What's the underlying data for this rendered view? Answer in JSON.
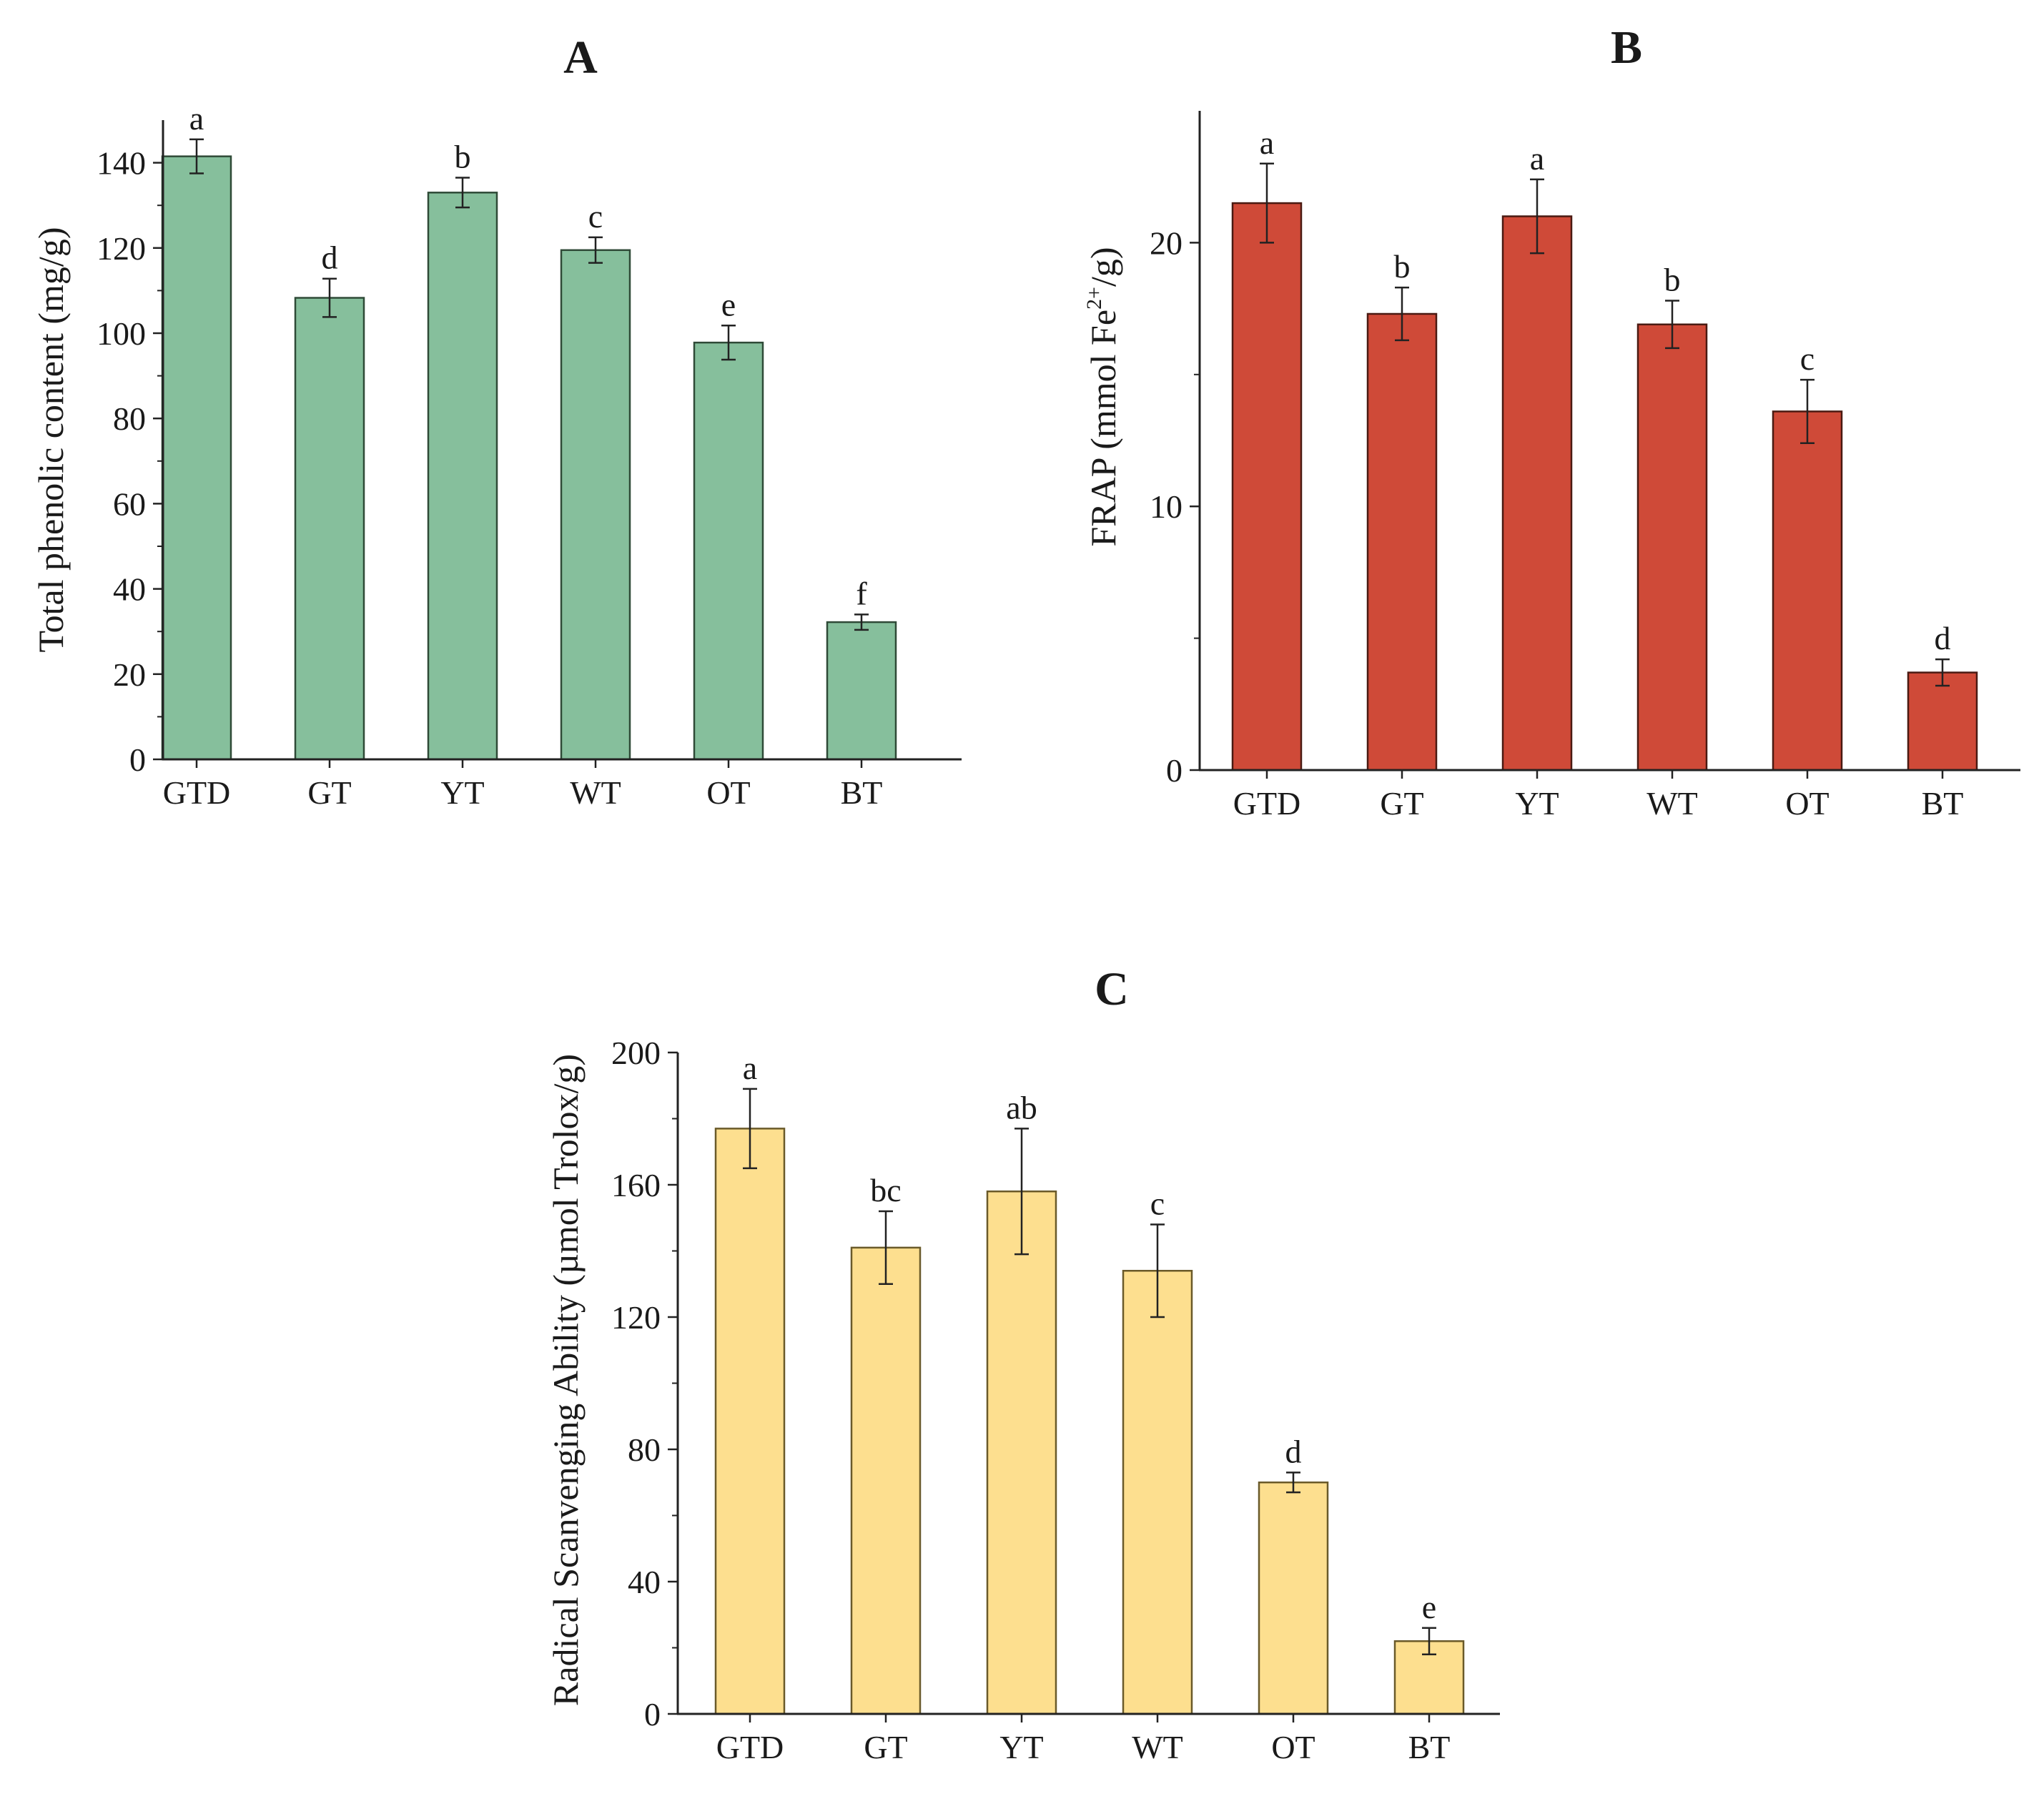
{
  "chart_data": [
    {
      "type": "bar",
      "title": "A",
      "ylabel": "Total phenolic content (mg/g)",
      "xlabel": "",
      "categories": [
        "GTD",
        "GT",
        "YT",
        "WT",
        "OT",
        "BT"
      ],
      "values": [
        141.5,
        108.3,
        133.0,
        119.5,
        97.8,
        32.2
      ],
      "errors": [
        4.0,
        4.5,
        3.5,
        3.0,
        4.0,
        1.8
      ],
      "significance": [
        "a",
        "d",
        "b",
        "c",
        "e",
        "f"
      ],
      "ylim": [
        0,
        150
      ],
      "yticks": [
        0,
        20,
        40,
        60,
        80,
        100,
        120,
        140
      ],
      "ytick_labels": [
        "0",
        "20",
        "40",
        "60",
        "80",
        "100",
        "120",
        "140"
      ],
      "color": "#86bf9c",
      "edge_color": "#2f4a37"
    },
    {
      "type": "bar",
      "title": "B",
      "ylabel_parts": {
        "before": "FRAP (mmol Fe",
        "sup": "2+",
        "after": "/g)"
      },
      "xlabel": "",
      "categories": [
        "GTD",
        "GT",
        "YT",
        "WT",
        "OT",
        "BT"
      ],
      "values": [
        21.5,
        17.3,
        21.0,
        16.9,
        13.6,
        3.7
      ],
      "errors": [
        1.5,
        1.0,
        1.4,
        0.9,
        1.2,
        0.5
      ],
      "significance": [
        "a",
        "b",
        "a",
        "b",
        "c",
        "d"
      ],
      "ylim": [
        0,
        25
      ],
      "yticks": [
        0,
        10,
        20
      ],
      "ytick_labels": [
        "0",
        "10",
        "20"
      ],
      "color": "#cf4a38",
      "edge_color": "#4a1a12"
    },
    {
      "type": "bar",
      "title": "C",
      "ylabel": "Radical Scanvenging Ability (µmol Trolox/g)",
      "xlabel": "",
      "categories": [
        "GTD",
        "GT",
        "YT",
        "WT",
        "OT",
        "BT"
      ],
      "values": [
        177,
        141,
        158,
        134,
        70,
        22
      ],
      "errors": [
        12,
        11,
        19,
        14,
        3,
        4
      ],
      "significance": [
        "a",
        "bc",
        "ab",
        "c",
        "d",
        "e"
      ],
      "ylim": [
        0,
        200
      ],
      "yticks": [
        0,
        40,
        80,
        120,
        160,
        200
      ],
      "ytick_labels": [
        "0",
        "40",
        "80",
        "120",
        "160",
        "200"
      ],
      "color": "#fddf8f",
      "edge_color": "#6a5a2a"
    }
  ]
}
